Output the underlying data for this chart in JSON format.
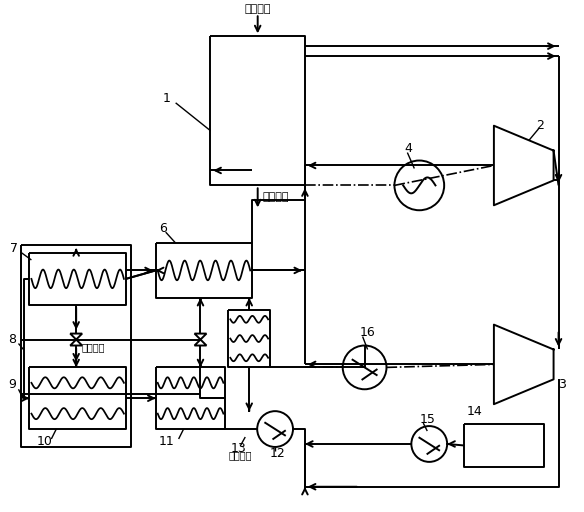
{
  "bg_color": "#ffffff",
  "line_color": "#000000",
  "fig_width": 5.84,
  "fig_height": 5.12,
  "dpi": 100,
  "labels": {
    "smoke_in": "烟气进口",
    "smoke_out": "烟气出口",
    "cool_out": "冷却水出",
    "cool_in": "冷却水进",
    "n1": "1",
    "n2": "2",
    "n3": "3",
    "n4": "4",
    "n6": "6",
    "n7": "7",
    "n8": "8",
    "n9": "9",
    "n10": "10",
    "n11": "11",
    "n12": "12",
    "n13": "13",
    "n14": "14",
    "n15": "15",
    "n16": "16"
  }
}
